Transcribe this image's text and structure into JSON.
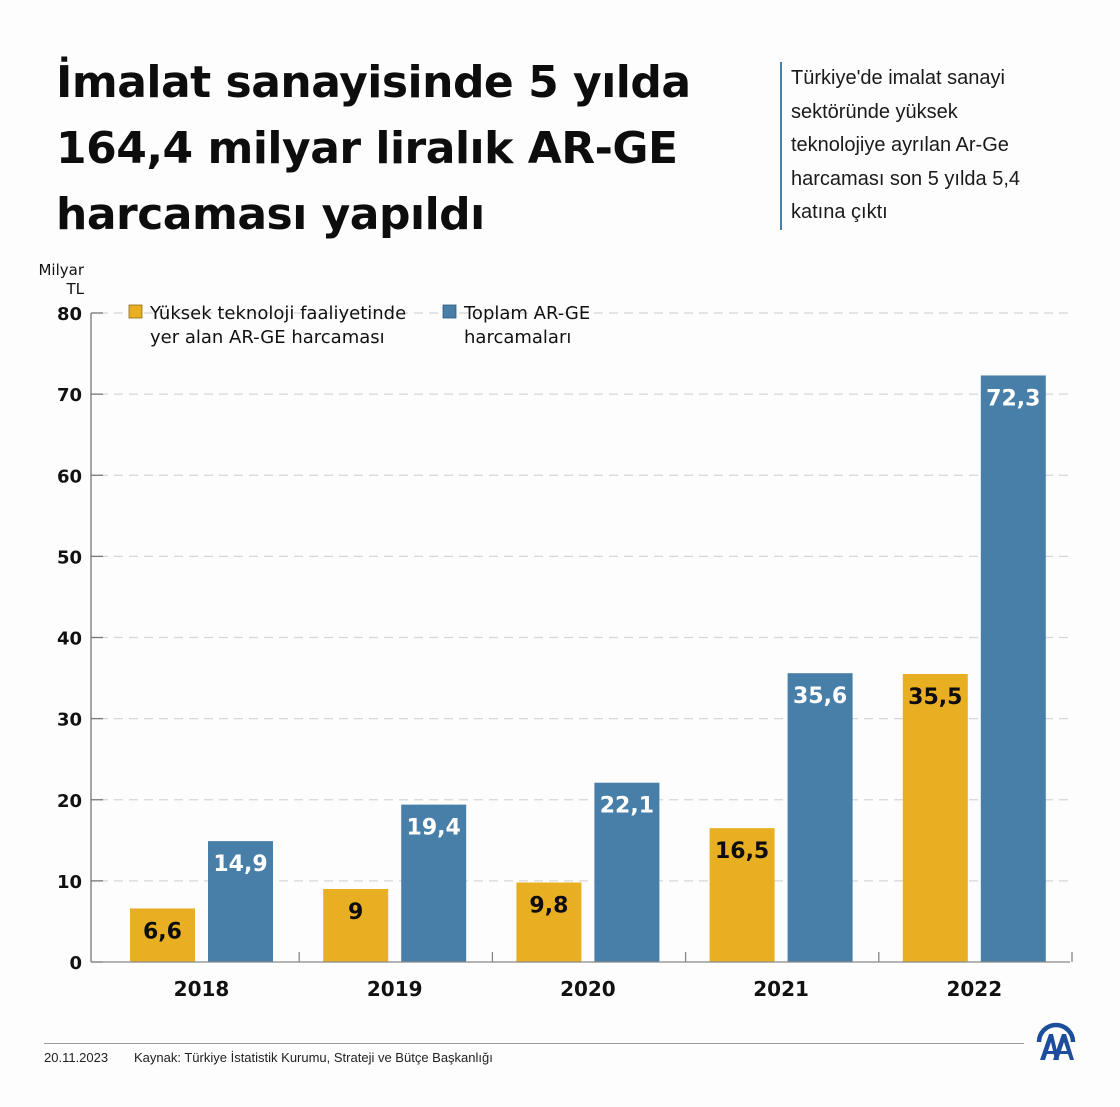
{
  "header": {
    "title_lines": [
      "İmalat sanayisinde 5 yılda",
      "164,4 milyar liralık AR-GE",
      "harcaması yapıldı"
    ],
    "subtitle_lines": [
      "Türkiye'de imalat sanayi",
      "sektöründe yüksek",
      "teknolojiye ayrılan Ar-Ge",
      "harcaması son 5 yılda 5,4",
      "katına çıktı"
    ]
  },
  "chart_data": {
    "type": "bar",
    "title": "İmalat sanayisinde 5 yılda 164,4 milyar liralık AR-GE harcaması yapıldı",
    "ylabel_lines": [
      "Milyar",
      "TL"
    ],
    "xlabel": "",
    "categories": [
      "2018",
      "2019",
      "2020",
      "2021",
      "2022"
    ],
    "ylim": [
      0,
      80
    ],
    "yticks": [
      0,
      10,
      20,
      30,
      40,
      50,
      60,
      70,
      80
    ],
    "grid": true,
    "legend_position": "top-left",
    "series": [
      {
        "name": "Yüksek teknoloji faaliyetinde yer alan AR-GE harcaması",
        "legend_lines": [
          "Yüksek teknoloji faaliyetinde",
          "yer alan AR-GE harcaması"
        ],
        "color": "#e8af22",
        "label_color": "#0d0d0d",
        "values": [
          6.6,
          9,
          9.8,
          16.5,
          35.5
        ],
        "labels": [
          "6,6",
          "9",
          "9,8",
          "16,5",
          "35,5"
        ]
      },
      {
        "name": "Toplam AR-GE harcamaları",
        "legend_lines": [
          "Toplam AR-GE",
          "harcamaları"
        ],
        "color": "#487fa9",
        "label_color": "#ffffff",
        "values": [
          14.9,
          19.4,
          22.1,
          35.6,
          72.3
        ],
        "labels": [
          "14,9",
          "19,4",
          "22,1",
          "35,6",
          "72,3"
        ]
      }
    ]
  },
  "footer": {
    "date": "20.11.2023",
    "source": "Kaynak: Türkiye İstatistik Kurumu, Strateji ve Bütçe Başkanlığı",
    "logo_text": "AA"
  },
  "colors": {
    "accent_line": "#4a7fa8",
    "logo": "#1c4e9c"
  }
}
